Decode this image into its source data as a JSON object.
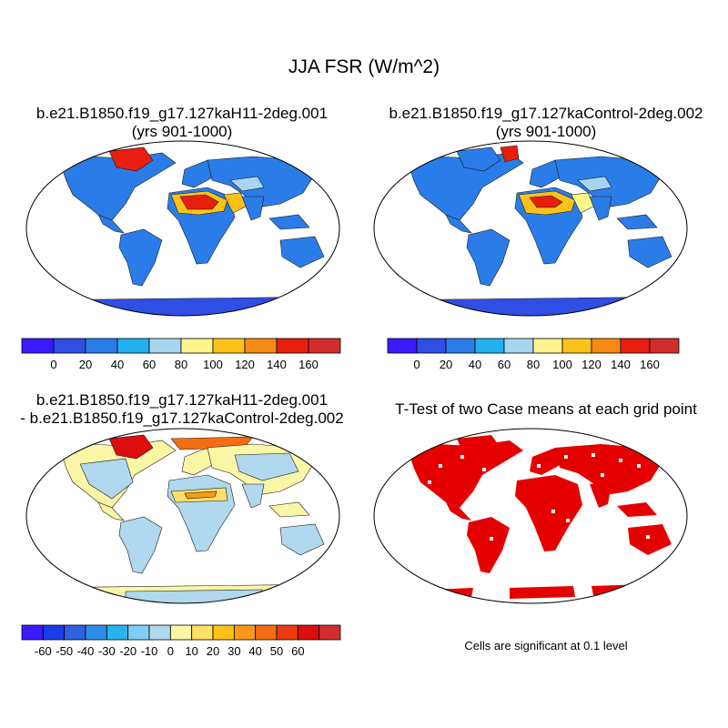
{
  "title": "JJA FSR (W/m^2)",
  "panels": {
    "case1": {
      "title": "b.e21.B1850.f19_g17.127kaH11-2deg.001",
      "subtitle": "(yrs 901-1000)"
    },
    "case2": {
      "title": "b.e21.B1850.f19_g17.127kaControl-2deg.002",
      "subtitle": "(yrs 901-1000)"
    },
    "diff": {
      "title_line1": "b.e21.B1850.f19_g17.127kaH11-2deg.001",
      "title_line2": "- b.e21.B1850.f19_g17.127kaControl-2deg.002"
    },
    "ttest": {
      "title": "T-Test of two Case means at each grid point",
      "note": "Cells are significant at 0.1 level"
    }
  },
  "colorbars": {
    "absolute": {
      "colors": [
        "#3a1aff",
        "#2f4ee3",
        "#2a7de8",
        "#21b0f0",
        "#a8d4f0",
        "#fbf58c",
        "#fcc21a",
        "#f78a12",
        "#e81e0e",
        "#d22d2d"
      ],
      "labels": [
        "0",
        "20",
        "40",
        "60",
        "80",
        "100",
        "120",
        "140",
        "160"
      ]
    },
    "difference": {
      "colors": [
        "#3a1aff",
        "#1a3ce8",
        "#2f62e0",
        "#2e8ee6",
        "#2ab3f0",
        "#7fcff2",
        "#b0d8ee",
        "#fbf5a6",
        "#fde066",
        "#fcc21a",
        "#f9991a",
        "#f36e12",
        "#ec3a10",
        "#dc0e0e",
        "#d22d2d"
      ],
      "labels": [
        "-60",
        "-50",
        "-40",
        "-30",
        "-20",
        "-10",
        "0",
        "10",
        "20",
        "30",
        "40",
        "50",
        "60"
      ]
    }
  },
  "legend_colors": {
    "ocean": "#ffffff",
    "land_low": "#2a7de8",
    "sahara_high": "#e81e0e",
    "antarctica": "#2f4ee3",
    "diff_land": "#b0d8ee",
    "diff_pos": "#fbf5a6",
    "significant": "#e50000"
  }
}
